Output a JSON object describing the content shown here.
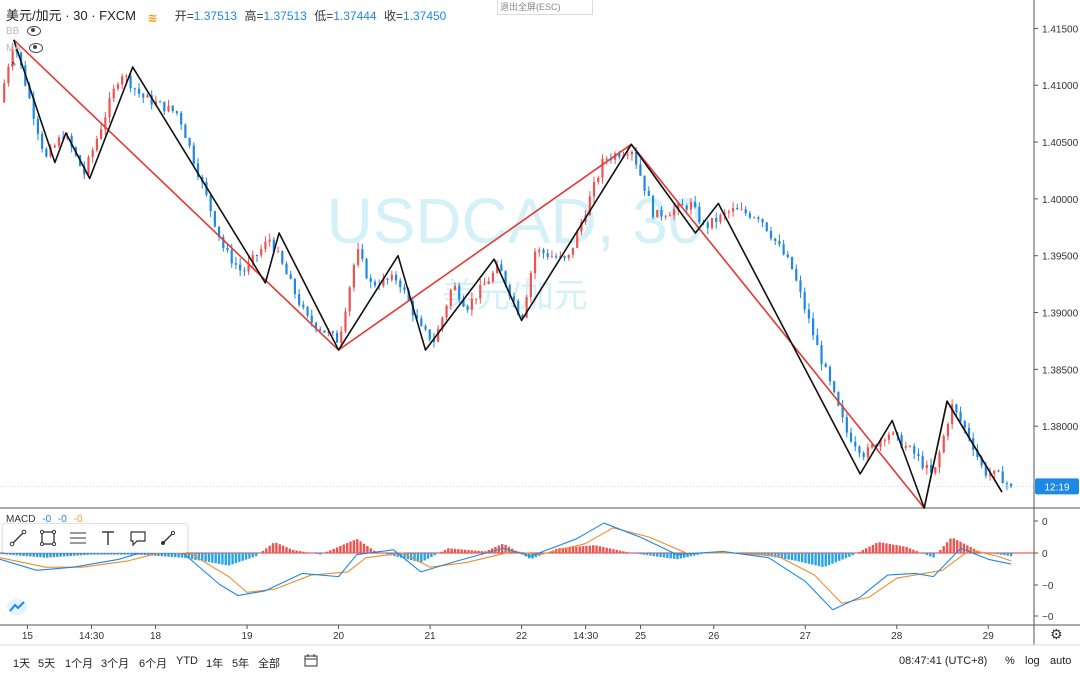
{
  "legend": {
    "symbol": "美元/加元 · 30 · FXCM",
    "open_label": "开=",
    "open": "1.37513",
    "high_label": "高=",
    "high": "1.37513",
    "low_label": "低=",
    "low": "1.37444",
    "close_label": "收=",
    "close": "1.37450"
  },
  "indicators": {
    "bb": "BB",
    "ma": "MA"
  },
  "exit_fullscreen": "退出全屏(ESC)",
  "watermark": {
    "symbol": "USDCAD, 30",
    "name": "美元/加元"
  },
  "macd_legend": {
    "name": "MACD",
    "v1": "-0",
    "v2": "-0",
    "v3": "-0"
  },
  "price_axis": {
    "current_label": "12:19",
    "current_color": "#1e88e5"
  },
  "bottom": {
    "ranges": [
      "1天",
      "5天",
      "1个月",
      "3个月",
      "6个月",
      "YTD",
      "1年",
      "5年",
      "全部"
    ],
    "clock": "08:47:41 (UTC+8)",
    "percent": "%",
    "log": "log",
    "auto": "auto"
  },
  "icons": [
    "eye-icon",
    "trend-line-icon",
    "rectangle-icon",
    "fib-icon",
    "text-icon",
    "callout-icon",
    "brush-icon",
    "tradingview-logo-icon",
    "calendar-icon",
    "gear-icon"
  ],
  "colors": {
    "up": "#ef5350",
    "down": "#1e88e5",
    "zigzag_major": "#e53935",
    "zigzag_minor": "#111111",
    "macd_fast": "#1e88e5",
    "macd_signal": "#f08c30"
  },
  "chart_data": {
    "type": "line",
    "title": "",
    "price_ticks": [
      1.415,
      1.41,
      1.405,
      1.4,
      1.395,
      1.39,
      1.385,
      1.38
    ],
    "price_tick_labels": [
      "1.41500",
      "1.41000",
      "1.40500",
      "1.40000",
      "1.39500",
      "1.39000",
      "1.38500",
      "1.38000"
    ],
    "ylim": [
      1.3728,
      1.4175
    ],
    "macd_ticks": [
      0,
      0,
      0,
      0
    ],
    "macd_tick_labels": [
      "0",
      "0",
      "−0",
      "−0"
    ],
    "x_ticks": [
      {
        "t": 0.3,
        "label": "15"
      },
      {
        "t": 1.0,
        "label": "14:30"
      },
      {
        "t": 1.7,
        "label": "18"
      },
      {
        "t": 2.7,
        "label": "19"
      },
      {
        "t": 3.7,
        "label": "20"
      },
      {
        "t": 4.7,
        "label": "21"
      },
      {
        "t": 5.7,
        "label": "22"
      },
      {
        "t": 6.4,
        "label": "14:30"
      },
      {
        "t": 7.0,
        "label": "25"
      },
      {
        "t": 7.8,
        "label": "26"
      },
      {
        "t": 8.8,
        "label": "27"
      },
      {
        "t": 9.8,
        "label": "28"
      },
      {
        "t": 10.8,
        "label": "29"
      }
    ],
    "xlim": [
      0,
      11.3
    ],
    "price_path": [
      {
        "t": 0.0,
        "p": 1.4085
      },
      {
        "t": 0.15,
        "p": 1.414
      },
      {
        "t": 0.5,
        "p": 1.4035
      },
      {
        "t": 0.7,
        "p": 1.4058
      },
      {
        "t": 0.92,
        "p": 1.4022
      },
      {
        "t": 1.32,
        "p": 1.4112
      },
      {
        "t": 1.55,
        "p": 1.409
      },
      {
        "t": 1.95,
        "p": 1.4075
      },
      {
        "t": 2.45,
        "p": 1.3955
      },
      {
        "t": 2.65,
        "p": 1.3935
      },
      {
        "t": 2.95,
        "p": 1.3965
      },
      {
        "t": 3.35,
        "p": 1.3895
      },
      {
        "t": 3.7,
        "p": 1.3875
      },
      {
        "t": 3.9,
        "p": 1.3955
      },
      {
        "t": 4.05,
        "p": 1.3925
      },
      {
        "t": 4.35,
        "p": 1.393
      },
      {
        "t": 4.6,
        "p": 1.3885
      },
      {
        "t": 4.75,
        "p": 1.3875
      },
      {
        "t": 4.95,
        "p": 1.3925
      },
      {
        "t": 5.1,
        "p": 1.3905
      },
      {
        "t": 5.45,
        "p": 1.394
      },
      {
        "t": 5.7,
        "p": 1.3895
      },
      {
        "t": 5.85,
        "p": 1.3955
      },
      {
        "t": 6.2,
        "p": 1.3945
      },
      {
        "t": 6.6,
        "p": 1.4035
      },
      {
        "t": 6.9,
        "p": 1.4045
      },
      {
        "t": 7.15,
        "p": 1.3985
      },
      {
        "t": 7.55,
        "p": 1.3995
      },
      {
        "t": 7.7,
        "p": 1.3975
      },
      {
        "t": 8.0,
        "p": 1.399
      },
      {
        "t": 8.3,
        "p": 1.3985
      },
      {
        "t": 8.65,
        "p": 1.394
      },
      {
        "t": 8.95,
        "p": 1.3865
      },
      {
        "t": 9.25,
        "p": 1.3795
      },
      {
        "t": 9.45,
        "p": 1.3775
      },
      {
        "t": 9.7,
        "p": 1.3795
      },
      {
        "t": 10.0,
        "p": 1.3775
      },
      {
        "t": 10.2,
        "p": 1.3755
      },
      {
        "t": 10.4,
        "p": 1.3818
      },
      {
        "t": 10.6,
        "p": 1.379
      },
      {
        "t": 10.75,
        "p": 1.376
      },
      {
        "t": 10.95,
        "p": 1.3755
      },
      {
        "t": 11.05,
        "p": 1.3745
      }
    ],
    "zigzag_major": [
      {
        "t": 0.15,
        "p": 1.414
      },
      {
        "t": 3.7,
        "p": 1.3867
      },
      {
        "t": 6.9,
        "p": 1.4048
      },
      {
        "t": 10.1,
        "p": 1.3728
      },
      {
        "t": 10.35,
        "p": 1.3822
      },
      {
        "t": 10.95,
        "p": 1.3742
      }
    ],
    "zigzag_minor": [
      {
        "t": 0.15,
        "p": 1.414
      },
      {
        "t": 0.6,
        "p": 1.4032
      },
      {
        "t": 0.72,
        "p": 1.4058
      },
      {
        "t": 0.98,
        "p": 1.4018
      },
      {
        "t": 1.45,
        "p": 1.4116
      },
      {
        "t": 2.9,
        "p": 1.3926
      },
      {
        "t": 3.05,
        "p": 1.397
      },
      {
        "t": 3.7,
        "p": 1.3867
      },
      {
        "t": 4.35,
        "p": 1.395
      },
      {
        "t": 4.65,
        "p": 1.3867
      },
      {
        "t": 5.4,
        "p": 1.3947
      },
      {
        "t": 5.7,
        "p": 1.3893
      },
      {
        "t": 6.9,
        "p": 1.4048
      },
      {
        "t": 7.6,
        "p": 1.397
      },
      {
        "t": 7.85,
        "p": 1.3996
      },
      {
        "t": 9.4,
        "p": 1.3758
      },
      {
        "t": 9.75,
        "p": 1.3805
      },
      {
        "t": 10.1,
        "p": 1.3728
      },
      {
        "t": 10.35,
        "p": 1.3822
      },
      {
        "t": 10.95,
        "p": 1.3742
      }
    ],
    "macd_hist_path": [
      {
        "t": 0.0,
        "v": -0.03
      },
      {
        "t": 0.5,
        "v": -0.15
      },
      {
        "t": 1.0,
        "v": -0.05
      },
      {
        "t": 1.5,
        "v": -0.05
      },
      {
        "t": 2.0,
        "v": -0.15
      },
      {
        "t": 2.5,
        "v": -0.4
      },
      {
        "t": 2.8,
        "v": -0.1
      },
      {
        "t": 3.0,
        "v": 0.35
      },
      {
        "t": 3.2,
        "v": 0.1
      },
      {
        "t": 3.5,
        "v": -0.05
      },
      {
        "t": 3.9,
        "v": 0.45
      },
      {
        "t": 4.1,
        "v": 0.05
      },
      {
        "t": 4.6,
        "v": -0.3
      },
      {
        "t": 4.9,
        "v": 0.15
      },
      {
        "t": 5.3,
        "v": 0.05
      },
      {
        "t": 5.5,
        "v": 0.3
      },
      {
        "t": 5.8,
        "v": -0.2
      },
      {
        "t": 6.1,
        "v": 0.15
      },
      {
        "t": 6.5,
        "v": 0.25
      },
      {
        "t": 6.9,
        "v": 0.0
      },
      {
        "t": 7.4,
        "v": -0.2
      },
      {
        "t": 7.8,
        "v": 0.05
      },
      {
        "t": 8.3,
        "v": -0.05
      },
      {
        "t": 8.7,
        "v": -0.25
      },
      {
        "t": 9.0,
        "v": -0.45
      },
      {
        "t": 9.3,
        "v": -0.1
      },
      {
        "t": 9.6,
        "v": 0.35
      },
      {
        "t": 9.9,
        "v": 0.2
      },
      {
        "t": 10.2,
        "v": -0.15
      },
      {
        "t": 10.4,
        "v": 0.5
      },
      {
        "t": 10.7,
        "v": 0.05
      },
      {
        "t": 11.05,
        "v": -0.1
      }
    ],
    "macd_line": [
      {
        "t": 0.0,
        "v": -0.2
      },
      {
        "t": 0.4,
        "v": -0.55
      },
      {
        "t": 0.8,
        "v": -0.45
      },
      {
        "t": 1.3,
        "v": -0.2
      },
      {
        "t": 1.7,
        "v": 0.15
      },
      {
        "t": 2.0,
        "v": 0.0
      },
      {
        "t": 2.4,
        "v": -1.0
      },
      {
        "t": 2.6,
        "v": -1.35
      },
      {
        "t": 2.9,
        "v": -1.2
      },
      {
        "t": 3.3,
        "v": -0.65
      },
      {
        "t": 3.7,
        "v": -0.75
      },
      {
        "t": 3.9,
        "v": -0.05
      },
      {
        "t": 4.3,
        "v": 0.1
      },
      {
        "t": 4.6,
        "v": -0.6
      },
      {
        "t": 5.0,
        "v": -0.25
      },
      {
        "t": 5.5,
        "v": 0.15
      },
      {
        "t": 5.8,
        "v": -0.1
      },
      {
        "t": 6.3,
        "v": 0.45
      },
      {
        "t": 6.6,
        "v": 0.95
      },
      {
        "t": 7.0,
        "v": 0.5
      },
      {
        "t": 7.4,
        "v": -0.05
      },
      {
        "t": 7.9,
        "v": 0.05
      },
      {
        "t": 8.4,
        "v": -0.15
      },
      {
        "t": 8.8,
        "v": -0.9
      },
      {
        "t": 9.1,
        "v": -1.8
      },
      {
        "t": 9.4,
        "v": -1.4
      },
      {
        "t": 9.7,
        "v": -0.7
      },
      {
        "t": 10.0,
        "v": -0.65
      },
      {
        "t": 10.2,
        "v": -0.75
      },
      {
        "t": 10.5,
        "v": 0.15
      },
      {
        "t": 10.8,
        "v": -0.2
      },
      {
        "t": 11.05,
        "v": -0.35
      }
    ],
    "macd_signal": [
      {
        "t": 0.0,
        "v": -0.15
      },
      {
        "t": 0.5,
        "v": -0.45
      },
      {
        "t": 0.9,
        "v": -0.45
      },
      {
        "t": 1.4,
        "v": -0.25
      },
      {
        "t": 1.8,
        "v": 0.05
      },
      {
        "t": 2.1,
        "v": -0.05
      },
      {
        "t": 2.5,
        "v": -0.75
      },
      {
        "t": 2.7,
        "v": -1.25
      },
      {
        "t": 3.0,
        "v": -1.15
      },
      {
        "t": 3.4,
        "v": -0.7
      },
      {
        "t": 3.8,
        "v": -0.6
      },
      {
        "t": 4.0,
        "v": -0.15
      },
      {
        "t": 4.4,
        "v": 0.0
      },
      {
        "t": 4.7,
        "v": -0.45
      },
      {
        "t": 5.1,
        "v": -0.3
      },
      {
        "t": 5.6,
        "v": 0.05
      },
      {
        "t": 5.9,
        "v": -0.05
      },
      {
        "t": 6.4,
        "v": 0.3
      },
      {
        "t": 6.7,
        "v": 0.8
      },
      {
        "t": 7.1,
        "v": 0.5
      },
      {
        "t": 7.5,
        "v": 0.0
      },
      {
        "t": 8.0,
        "v": 0.0
      },
      {
        "t": 8.5,
        "v": -0.1
      },
      {
        "t": 8.9,
        "v": -0.7
      },
      {
        "t": 9.2,
        "v": -1.6
      },
      {
        "t": 9.5,
        "v": -1.4
      },
      {
        "t": 9.8,
        "v": -0.8
      },
      {
        "t": 10.1,
        "v": -0.65
      },
      {
        "t": 10.3,
        "v": -0.55
      },
      {
        "t": 10.6,
        "v": 0.1
      },
      {
        "t": 10.9,
        "v": -0.1
      },
      {
        "t": 11.05,
        "v": -0.25
      }
    ],
    "grid": false,
    "legend_position": "top-left"
  }
}
